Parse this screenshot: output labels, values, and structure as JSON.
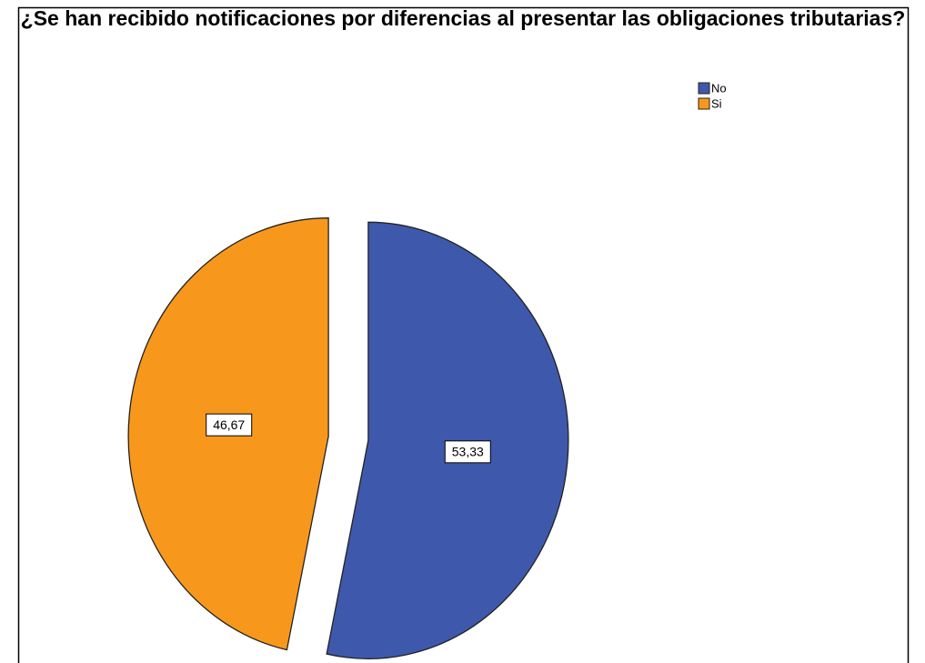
{
  "chart_data": {
    "type": "pie",
    "title": "¿Se han recibido notificaciones por diferencias al presentar las obligaciones tributarias?",
    "categories": [
      "No",
      "Si"
    ],
    "values": [
      53.33,
      46.67
    ],
    "value_labels": [
      "53,33",
      "46,67"
    ],
    "colors": [
      "#3e58ac",
      "#f7981d"
    ]
  }
}
